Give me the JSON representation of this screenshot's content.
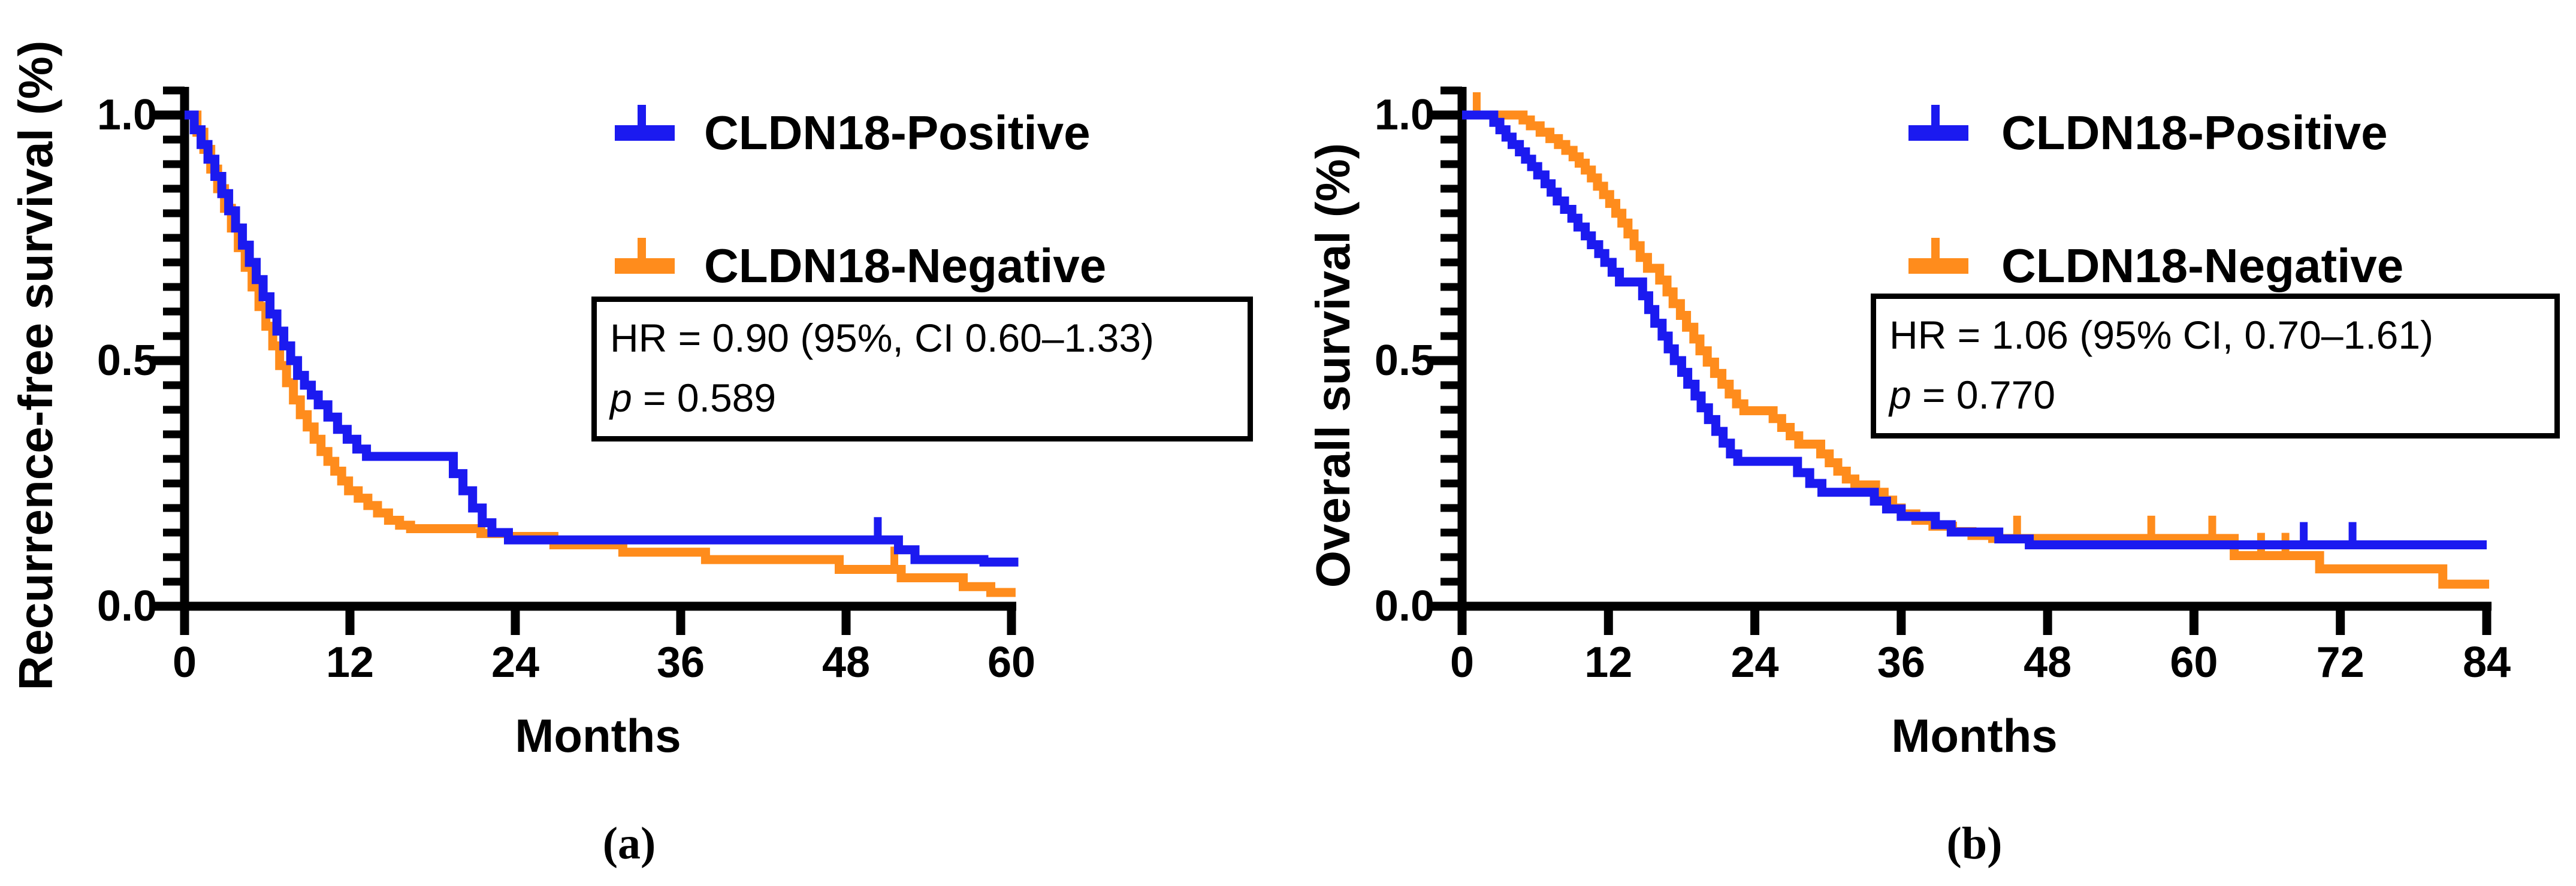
{
  "figure": {
    "captions": {
      "a": "(a)",
      "b": "(b)"
    }
  },
  "colors": {
    "positive": "#1b1af0",
    "negative": "#ff8c1c",
    "axis": "#000000",
    "background": "#ffffff"
  },
  "chart_data": [
    {
      "id": "a",
      "type": "line",
      "subtype": "kaplan-meier-step",
      "ylabel": "Recurrence-free survival (%)",
      "xlabel": "Months",
      "xlim": [
        0,
        60
      ],
      "xticks": [
        0,
        12,
        24,
        36,
        48,
        60
      ],
      "ylim": [
        0.0,
        1.05
      ],
      "yticks": [
        0.0,
        0.5,
        1.0
      ],
      "ytick_labels": [
        "0.0",
        "0.5",
        "1.0"
      ],
      "minor_y_step": 0.05,
      "grid": "off",
      "legend_position": "top-right-inside",
      "annotation": {
        "line1": "HR = 0.90 (95%, CI 0.60–1.33)",
        "line2_italic": "p",
        "line2_rest": " = 0.589"
      },
      "layout": {
        "x0": 308,
        "x1": 1688,
        "y_top": 192,
        "y_bottom": 1012,
        "axis_top": 145
      },
      "series": [
        {
          "name": "CLDN18-Positive",
          "color": "#1b1af0",
          "end": 60.5,
          "steps": [
            [
              0,
              1.0
            ],
            [
              0.7,
              0.97
            ],
            [
              1.2,
              0.94
            ],
            [
              1.7,
              0.91
            ],
            [
              2.2,
              0.875
            ],
            [
              2.7,
              0.84
            ],
            [
              3.2,
              0.805
            ],
            [
              3.7,
              0.77
            ],
            [
              4.2,
              0.735
            ],
            [
              4.7,
              0.7
            ],
            [
              5.2,
              0.665
            ],
            [
              5.7,
              0.63
            ],
            [
              6.2,
              0.595
            ],
            [
              6.7,
              0.56
            ],
            [
              7.2,
              0.53
            ],
            [
              7.7,
              0.5
            ],
            [
              8.2,
              0.47
            ],
            [
              8.7,
              0.45
            ],
            [
              9.2,
              0.43
            ],
            [
              9.7,
              0.41
            ],
            [
              10.4,
              0.385
            ],
            [
              11.1,
              0.36
            ],
            [
              11.8,
              0.34
            ],
            [
              12.5,
              0.32
            ],
            [
              13.2,
              0.305
            ],
            [
              19.5,
              0.27
            ],
            [
              20.2,
              0.235
            ],
            [
              20.9,
              0.2
            ],
            [
              21.6,
              0.17
            ],
            [
              22.3,
              0.15
            ],
            [
              23.5,
              0.135
            ],
            [
              51.8,
              0.115
            ],
            [
              53,
              0.095
            ],
            [
              58,
              0.09
            ]
          ],
          "censor_marks": [
            [
              50.3,
              0.135
            ]
          ]
        },
        {
          "name": "CLDN18-Negative",
          "color": "#ff8c1c",
          "end": 60.3,
          "steps": [
            [
              0,
              1.0
            ],
            [
              0.9,
              0.965
            ],
            [
              1.4,
              0.93
            ],
            [
              1.9,
              0.89
            ],
            [
              2.4,
              0.85
            ],
            [
              2.9,
              0.81
            ],
            [
              3.4,
              0.77
            ],
            [
              3.9,
              0.73
            ],
            [
              4.4,
              0.69
            ],
            [
              4.9,
              0.65
            ],
            [
              5.4,
              0.61
            ],
            [
              5.9,
              0.57
            ],
            [
              6.4,
              0.53
            ],
            [
              6.9,
              0.49
            ],
            [
              7.4,
              0.455
            ],
            [
              7.9,
              0.42
            ],
            [
              8.4,
              0.39
            ],
            [
              8.9,
              0.365
            ],
            [
              9.4,
              0.34
            ],
            [
              9.9,
              0.315
            ],
            [
              10.4,
              0.295
            ],
            [
              10.9,
              0.275
            ],
            [
              11.4,
              0.255
            ],
            [
              11.9,
              0.235
            ],
            [
              12.6,
              0.22
            ],
            [
              13.3,
              0.205
            ],
            [
              14,
              0.19
            ],
            [
              14.8,
              0.175
            ],
            [
              15.6,
              0.165
            ],
            [
              16.4,
              0.158
            ],
            [
              21.5,
              0.148
            ],
            [
              23.5,
              0.142
            ],
            [
              26.8,
              0.125
            ],
            [
              31.8,
              0.11
            ],
            [
              37.8,
              0.095
            ],
            [
              47.5,
              0.075
            ],
            [
              52,
              0.058
            ],
            [
              56.5,
              0.04
            ],
            [
              58.5,
              0.028
            ]
          ],
          "censor_marks": [
            [
              51.5,
              0.075
            ]
          ]
        }
      ]
    },
    {
      "id": "b",
      "type": "line",
      "subtype": "kaplan-meier-step",
      "ylabel": "Overall survival (%)",
      "xlabel": "Months",
      "xlim": [
        0,
        84
      ],
      "xticks": [
        0,
        12,
        24,
        36,
        48,
        60,
        72,
        84
      ],
      "ylim": [
        0.0,
        1.05
      ],
      "yticks": [
        0.0,
        0.5,
        1.0
      ],
      "ytick_labels": [
        "0.0",
        "0.5",
        "1.0"
      ],
      "minor_y_step": 0.05,
      "grid": "off",
      "legend_position": "top-right-inside",
      "annotation": {
        "line1": "HR = 1.06 (95% CI, 0.70–1.61)",
        "line2_italic": "p",
        "line2_rest": " = 0.770"
      },
      "layout": {
        "x0": 2440,
        "x1": 4150,
        "y_top": 192,
        "y_bottom": 1012,
        "axis_top": 145
      },
      "series": [
        {
          "name": "CLDN18-Positive",
          "color": "#1b1af0",
          "end": 84,
          "steps": [
            [
              0,
              1.0
            ],
            [
              2.6,
              0.985
            ],
            [
              3.1,
              0.97
            ],
            [
              3.6,
              0.955
            ],
            [
              4.1,
              0.94
            ],
            [
              4.7,
              0.925
            ],
            [
              5.2,
              0.91
            ],
            [
              5.7,
              0.895
            ],
            [
              6.2,
              0.878
            ],
            [
              6.8,
              0.86
            ],
            [
              7.3,
              0.843
            ],
            [
              7.8,
              0.825
            ],
            [
              8.4,
              0.808
            ],
            [
              9,
              0.79
            ],
            [
              9.5,
              0.772
            ],
            [
              10.1,
              0.754
            ],
            [
              10.6,
              0.736
            ],
            [
              11.2,
              0.718
            ],
            [
              11.7,
              0.7
            ],
            [
              12.3,
              0.68
            ],
            [
              12.9,
              0.66
            ],
            [
              14.8,
              0.632
            ],
            [
              15.3,
              0.604
            ],
            [
              15.8,
              0.576
            ],
            [
              16.4,
              0.55
            ],
            [
              16.9,
              0.524
            ],
            [
              17.4,
              0.5
            ],
            [
              18,
              0.476
            ],
            [
              18.5,
              0.452
            ],
            [
              19.1,
              0.428
            ],
            [
              19.6,
              0.404
            ],
            [
              20.2,
              0.38
            ],
            [
              20.8,
              0.356
            ],
            [
              21.4,
              0.332
            ],
            [
              22,
              0.31
            ],
            [
              22.6,
              0.295
            ],
            [
              27.5,
              0.272
            ],
            [
              28.5,
              0.25
            ],
            [
              29.5,
              0.232
            ],
            [
              33.8,
              0.214
            ],
            [
              34.8,
              0.198
            ],
            [
              36,
              0.183
            ],
            [
              38.8,
              0.166
            ],
            [
              40.1,
              0.151
            ],
            [
              44,
              0.137
            ],
            [
              46.5,
              0.125
            ]
          ],
          "censor_marks": [
            [
              69,
              0.125
            ],
            [
              73,
              0.125
            ]
          ]
        },
        {
          "name": "CLDN18-Negative",
          "color": "#ff8c1c",
          "end": 84.2,
          "steps": [
            [
              0,
              1.0
            ],
            [
              5,
              0.99
            ],
            [
              5.6,
              0.978
            ],
            [
              6.4,
              0.965
            ],
            [
              7.2,
              0.952
            ],
            [
              7.9,
              0.94
            ],
            [
              8.5,
              0.928
            ],
            [
              9.1,
              0.915
            ],
            [
              9.6,
              0.902
            ],
            [
              10.1,
              0.888
            ],
            [
              10.6,
              0.872
            ],
            [
              11.1,
              0.855
            ],
            [
              11.6,
              0.838
            ],
            [
              12.1,
              0.82
            ],
            [
              12.6,
              0.8
            ],
            [
              13.1,
              0.78
            ],
            [
              13.6,
              0.758
            ],
            [
              14.1,
              0.734
            ],
            [
              14.6,
              0.71
            ],
            [
              15.2,
              0.688
            ],
            [
              16.2,
              0.664
            ],
            [
              16.8,
              0.64
            ],
            [
              17.3,
              0.616
            ],
            [
              17.9,
              0.592
            ],
            [
              18.4,
              0.568
            ],
            [
              19,
              0.544
            ],
            [
              19.5,
              0.52
            ],
            [
              20.1,
              0.497
            ],
            [
              20.7,
              0.474
            ],
            [
              21.3,
              0.452
            ],
            [
              21.9,
              0.432
            ],
            [
              22.5,
              0.412
            ],
            [
              23.1,
              0.398
            ],
            [
              25.5,
              0.382
            ],
            [
              26.2,
              0.364
            ],
            [
              26.9,
              0.347
            ],
            [
              27.6,
              0.33
            ],
            [
              29.4,
              0.31
            ],
            [
              30.1,
              0.292
            ],
            [
              30.8,
              0.275
            ],
            [
              31.5,
              0.259
            ],
            [
              32.2,
              0.247
            ],
            [
              33.9,
              0.232
            ],
            [
              34.6,
              0.216
            ],
            [
              35.3,
              0.2
            ],
            [
              36,
              0.188
            ],
            [
              37.2,
              0.175
            ],
            [
              38.6,
              0.163
            ],
            [
              40.2,
              0.152
            ],
            [
              41.8,
              0.144
            ],
            [
              43.5,
              0.138
            ],
            [
              63.3,
              0.103
            ],
            [
              70.3,
              0.076
            ],
            [
              80.4,
              0.045
            ]
          ],
          "censor_marks": [
            [
              1.2,
              1.0
            ],
            [
              45.5,
              0.138
            ],
            [
              56.5,
              0.138
            ],
            [
              61.5,
              0.138
            ],
            [
              65.5,
              0.103
            ],
            [
              67.5,
              0.103
            ]
          ]
        }
      ]
    }
  ]
}
